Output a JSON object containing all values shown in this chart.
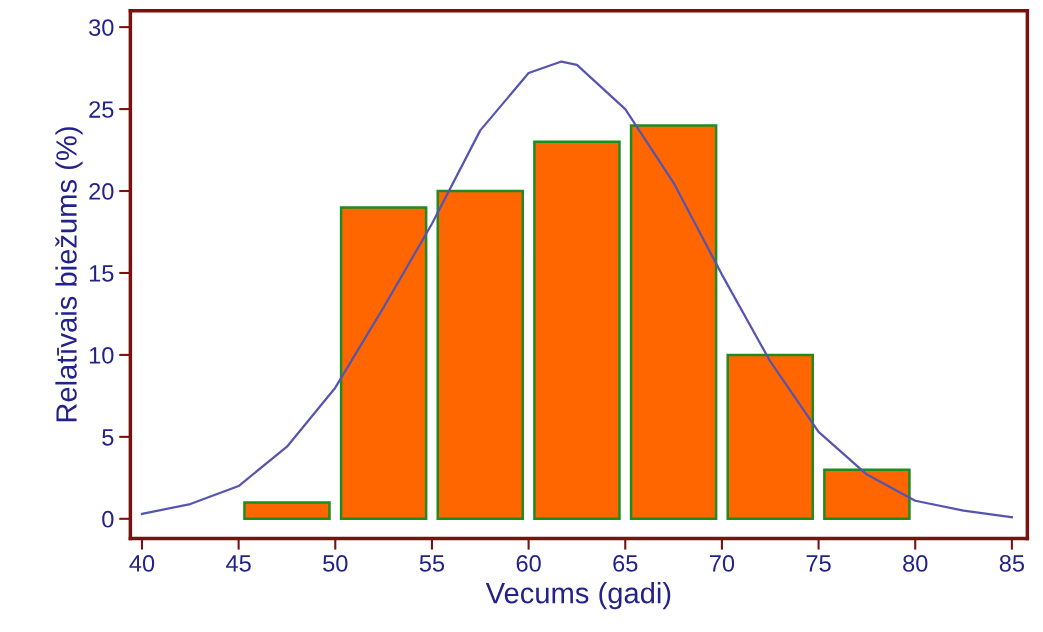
{
  "chart_data": {
    "type": "histogram",
    "xlabel": "Vecums (gadi)",
    "ylabel": "Relatīvais biežums (%)",
    "xlim": [
      39.4,
      85.8
    ],
    "ylim": [
      -1.2,
      31
    ],
    "xticks": [
      40,
      45,
      50,
      55,
      60,
      65,
      70,
      75,
      80,
      85
    ],
    "yticks": [
      0,
      5,
      10,
      15,
      20,
      25,
      30
    ],
    "grid": false,
    "legend": false,
    "series": [
      {
        "bins": [
          45,
          50,
          55,
          60,
          65,
          70,
          75,
          80
        ],
        "values": [
          1,
          19,
          20,
          23,
          24,
          10,
          3
        ],
        "color": "#ff6600"
      },
      {
        "type": "line",
        "color": "#5555b0",
        "x": [
          40,
          42.5,
          45,
          47.5,
          50,
          52.5,
          55,
          57.5,
          60,
          61.7,
          62.5,
          65,
          67.5,
          70,
          72.5,
          75,
          77.5,
          80,
          82.5,
          85
        ],
        "values": [
          0.3,
          0.9,
          2.0,
          4.4,
          8.0,
          12.9,
          18.0,
          23.7,
          27.2,
          27.9,
          27.7,
          25.0,
          20.5,
          14.9,
          9.6,
          5.3,
          2.7,
          1.1,
          0.5,
          0.1
        ]
      }
    ]
  }
}
